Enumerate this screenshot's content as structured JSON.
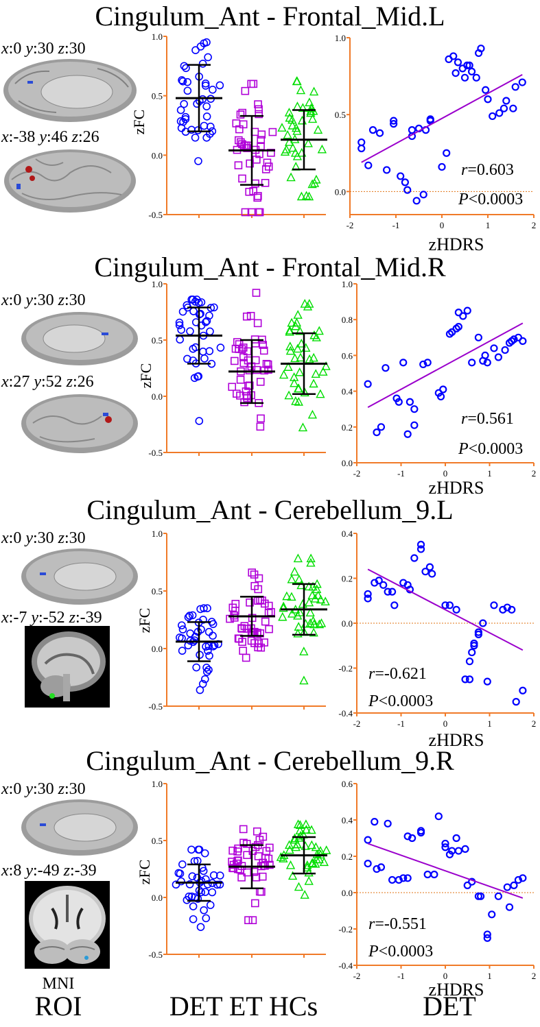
{
  "footer": {
    "roi_top": "MNI",
    "roi_bottom": "ROI",
    "groups": "DET ET HCs",
    "det": "DET"
  },
  "colors": {
    "DET": "#0000ff",
    "ET": "#b000d8",
    "HCs": "#00dd00",
    "axis": "#f07a28",
    "fit": "#9a00cc",
    "ref": "#e07010"
  },
  "chart_data": [
    {
      "title": "Cingulum_Ant - Frontal_Mid.L",
      "roi_coords": [
        {
          "x": "0",
          "y": "30",
          "z": "30"
        },
        {
          "x": "-38",
          "y": "46",
          "z": "26"
        }
      ],
      "scatter_dot": {
        "type": "scatter",
        "ylabel": "zFC",
        "ylim": [
          -0.5,
          1.0
        ],
        "yticks": [
          "1.0",
          "0.5",
          "0.0",
          "-0.5"
        ],
        "groups": [
          {
            "name": "DET",
            "marker": "circle",
            "mean": 0.48,
            "sd": 0.28,
            "min": -0.05,
            "max": 0.95,
            "n": 40
          },
          {
            "name": "ET",
            "marker": "square",
            "mean": 0.04,
            "sd": 0.29,
            "min": -0.48,
            "max": 0.6,
            "n": 44
          },
          {
            "name": "HCs",
            "marker": "triangle",
            "mean": 0.13,
            "sd": 0.25,
            "min": -0.35,
            "max": 0.62,
            "n": 40
          }
        ]
      },
      "correlation": {
        "type": "scatter",
        "xlabel": "zHDRS",
        "xlim": [
          -2,
          2
        ],
        "ylim": [
          -0.15,
          1.0
        ],
        "xticks": [
          "-2",
          "-1",
          "0",
          "1",
          "2"
        ],
        "yticks": [
          "1.0",
          "0.5",
          "0.0"
        ],
        "points": [
          [
            -1.75,
            0.28
          ],
          [
            -1.75,
            0.32
          ],
          [
            -1.6,
            0.17
          ],
          [
            -1.5,
            0.4
          ],
          [
            -1.35,
            0.38
          ],
          [
            -1.2,
            0.14
          ],
          [
            -1.05,
            0.44
          ],
          [
            -1.05,
            0.46
          ],
          [
            -0.9,
            0.1
          ],
          [
            -0.8,
            0.06
          ],
          [
            -0.75,
            0.01
          ],
          [
            -0.65,
            0.4
          ],
          [
            -0.65,
            0.36
          ],
          [
            -0.55,
            -0.06
          ],
          [
            -0.5,
            0.41
          ],
          [
            -0.4,
            -0.02
          ],
          [
            -0.35,
            0.4
          ],
          [
            -0.25,
            0.46
          ],
          [
            -0.25,
            0.47
          ],
          [
            0,
            0.16
          ],
          [
            0.1,
            0.25
          ],
          [
            0.15,
            0.86
          ],
          [
            0.25,
            0.88
          ],
          [
            0.3,
            0.77
          ],
          [
            0.35,
            0.84
          ],
          [
            0.45,
            0.8
          ],
          [
            0.5,
            0.74
          ],
          [
            0.55,
            0.82
          ],
          [
            0.6,
            0.82
          ],
          [
            0.65,
            0.78
          ],
          [
            0.75,
            0.74
          ],
          [
            0.8,
            0.9
          ],
          [
            0.85,
            0.93
          ],
          [
            0.95,
            0.66
          ],
          [
            1.0,
            0.6
          ],
          [
            1.1,
            0.49
          ],
          [
            1.25,
            0.51
          ],
          [
            1.35,
            0.54
          ],
          [
            1.4,
            0.59
          ],
          [
            1.55,
            0.54
          ],
          [
            1.6,
            0.68
          ],
          [
            1.75,
            0.71
          ]
        ],
        "fit": [
          [
            -1.75,
            0.19
          ],
          [
            1.75,
            0.76
          ]
        ],
        "r": "0.603",
        "p": "0.0003"
      }
    },
    {
      "title": "Cingulum_Ant - Frontal_Mid.R",
      "roi_coords": [
        {
          "x": "0",
          "y": "30",
          "z": "30"
        },
        {
          "x": "27",
          "y": "52",
          "z": "26"
        }
      ],
      "scatter_dot": {
        "type": "scatter",
        "ylabel": "zFC",
        "ylim": [
          -0.5,
          1.0
        ],
        "yticks": [
          "1.0",
          "0.5",
          "0.0",
          "-0.5"
        ],
        "groups": [
          {
            "name": "DET",
            "marker": "circle",
            "mean": 0.54,
            "sd": 0.25,
            "min": -0.22,
            "max": 0.86,
            "n": 40
          },
          {
            "name": "ET",
            "marker": "square",
            "mean": 0.22,
            "sd": 0.28,
            "min": -0.27,
            "max": 0.92,
            "n": 44
          },
          {
            "name": "HCs",
            "marker": "triangle",
            "mean": 0.29,
            "sd": 0.27,
            "min": -0.28,
            "max": 0.82,
            "n": 40
          }
        ]
      },
      "correlation": {
        "type": "scatter",
        "xlabel": "zHDRS",
        "xlim": [
          -2,
          2
        ],
        "ylim": [
          0.0,
          1.0
        ],
        "xticks": [
          "-2",
          "-1",
          "0",
          "1",
          "2"
        ],
        "yticks": [
          "1.0",
          "0.8",
          "0.6",
          "0.4",
          "0.2",
          "0.0"
        ],
        "points": [
          [
            -1.75,
            0.44
          ],
          [
            -1.55,
            0.17
          ],
          [
            -1.45,
            0.2
          ],
          [
            -1.35,
            0.53
          ],
          [
            -1.1,
            0.36
          ],
          [
            -1.05,
            0.34
          ],
          [
            -0.95,
            0.56
          ],
          [
            -0.85,
            0.16
          ],
          [
            -0.8,
            0.34
          ],
          [
            -0.7,
            0.21
          ],
          [
            -0.7,
            0.3
          ],
          [
            -0.5,
            0.55
          ],
          [
            -0.4,
            0.56
          ],
          [
            -0.15,
            0.39
          ],
          [
            -0.1,
            0.37
          ],
          [
            -0.05,
            0.41
          ],
          [
            0.1,
            0.72
          ],
          [
            0.15,
            0.73
          ],
          [
            0.25,
            0.75
          ],
          [
            0.3,
            0.84
          ],
          [
            0.3,
            0.76
          ],
          [
            0.4,
            0.82
          ],
          [
            0.5,
            0.85
          ],
          [
            0.6,
            0.56
          ],
          [
            0.75,
            0.7
          ],
          [
            0.85,
            0.57
          ],
          [
            0.9,
            0.6
          ],
          [
            0.95,
            0.56
          ],
          [
            1.1,
            0.64
          ],
          [
            1.2,
            0.59
          ],
          [
            1.35,
            0.63
          ],
          [
            1.45,
            0.67
          ],
          [
            1.5,
            0.68
          ],
          [
            1.55,
            0.69
          ],
          [
            1.65,
            0.7
          ],
          [
            1.75,
            0.68
          ]
        ],
        "fit": [
          [
            -1.75,
            0.31
          ],
          [
            1.75,
            0.78
          ]
        ],
        "r": "0.561",
        "p": "0.0003"
      }
    },
    {
      "title": "Cingulum_Ant - Cerebellum_9.L",
      "roi_coords": [
        {
          "x": "0",
          "y": "30",
          "z": "30"
        },
        {
          "x": "-7",
          "y": "-52",
          "z": "-39"
        }
      ],
      "scatter_dot": {
        "type": "scatter",
        "ylabel": "zFC",
        "ylim": [
          -0.5,
          1.0
        ],
        "yticks": [
          "1.0",
          "0.5",
          "0.0",
          "-0.5"
        ],
        "groups": [
          {
            "name": "DET",
            "marker": "circle",
            "mean": 0.06,
            "sd": 0.17,
            "min": -0.36,
            "max": 0.35,
            "n": 40
          },
          {
            "name": "ET",
            "marker": "square",
            "mean": 0.28,
            "sd": 0.17,
            "min": -0.08,
            "max": 0.66,
            "n": 44
          },
          {
            "name": "HCs",
            "marker": "triangle",
            "mean": 0.34,
            "sd": 0.22,
            "min": -0.28,
            "max": 0.78,
            "n": 40
          }
        ]
      },
      "correlation": {
        "type": "scatter",
        "xlabel": "zHDRS",
        "xlim": [
          -2,
          2
        ],
        "ylim": [
          -0.4,
          0.4
        ],
        "xticks": [
          "-2",
          "-1",
          "0",
          "1",
          "2"
        ],
        "yticks": [
          "0.4",
          "0.2",
          "0.0",
          "-0.2",
          "-0.4"
        ],
        "points": [
          [
            -1.75,
            0.13
          ],
          [
            -1.75,
            0.11
          ],
          [
            -1.6,
            0.18
          ],
          [
            -1.5,
            0.19
          ],
          [
            -1.4,
            0.17
          ],
          [
            -1.3,
            0.14
          ],
          [
            -1.2,
            0.14
          ],
          [
            -1.15,
            0.08
          ],
          [
            -0.95,
            0.18
          ],
          [
            -0.85,
            0.17
          ],
          [
            -0.8,
            0.15
          ],
          [
            -0.7,
            0.29
          ],
          [
            -0.55,
            0.33
          ],
          [
            -0.55,
            0.35
          ],
          [
            -0.45,
            0.23
          ],
          [
            -0.35,
            0.25
          ],
          [
            -0.3,
            0.22
          ],
          [
            0,
            0.08
          ],
          [
            0.1,
            0.08
          ],
          [
            0.25,
            0.06
          ],
          [
            0.45,
            -0.25
          ],
          [
            0.55,
            -0.17
          ],
          [
            0.55,
            -0.25
          ],
          [
            0.6,
            -0.13
          ],
          [
            0.65,
            -0.09
          ],
          [
            0.65,
            -0.1
          ],
          [
            0.75,
            -0.04
          ],
          [
            0.75,
            -0.05
          ],
          [
            0.85,
            0.0
          ],
          [
            0.95,
            -0.26
          ],
          [
            1.1,
            0.08
          ],
          [
            1.3,
            0.06
          ],
          [
            1.4,
            0.07
          ],
          [
            1.5,
            0.06
          ],
          [
            1.6,
            -0.35
          ],
          [
            1.75,
            -0.3
          ]
        ],
        "fit": [
          [
            -1.75,
            0.24
          ],
          [
            1.75,
            -0.12
          ]
        ],
        "r": "-0.621",
        "p": "0.0003"
      }
    },
    {
      "title": "Cingulum_Ant - Cerebellum_9.R",
      "roi_coords": [
        {
          "x": "0",
          "y": "30",
          "z": "30"
        },
        {
          "x": "8",
          "y": "-49",
          "z": "-39"
        }
      ],
      "scatter_dot": {
        "type": "scatter",
        "ylabel": "zFC",
        "ylim": [
          -0.5,
          1.0
        ],
        "yticks": [
          "1.0",
          "0.5",
          "0.0",
          "-0.5"
        ],
        "groups": [
          {
            "name": "DET",
            "marker": "circle",
            "mean": 0.13,
            "sd": 0.16,
            "min": -0.26,
            "max": 0.42,
            "n": 40
          },
          {
            "name": "ET",
            "marker": "square",
            "mean": 0.27,
            "sd": 0.19,
            "min": -0.2,
            "max": 0.6,
            "n": 44
          },
          {
            "name": "HCs",
            "marker": "triangle",
            "mean": 0.37,
            "sd": 0.16,
            "min": 0.02,
            "max": 0.64,
            "n": 40
          }
        ]
      },
      "correlation": {
        "type": "scatter",
        "xlabel": "zHDRS",
        "xlim": [
          -2,
          2
        ],
        "ylim": [
          -0.4,
          0.6
        ],
        "xticks": [
          "-2",
          "-1",
          "0",
          "1",
          "2"
        ],
        "yticks": [
          "0.6",
          "0.4",
          "0.2",
          "0.0",
          "-0.2",
          "-0.4"
        ],
        "points": [
          [
            -1.75,
            0.29
          ],
          [
            -1.75,
            0.16
          ],
          [
            -1.6,
            0.39
          ],
          [
            -1.55,
            0.13
          ],
          [
            -1.45,
            0.14
          ],
          [
            -1.3,
            0.38
          ],
          [
            -1.2,
            0.07
          ],
          [
            -1.05,
            0.07
          ],
          [
            -0.95,
            0.08
          ],
          [
            -0.85,
            0.08
          ],
          [
            -0.85,
            0.31
          ],
          [
            -0.75,
            0.3
          ],
          [
            -0.55,
            0.33
          ],
          [
            -0.55,
            0.34
          ],
          [
            -0.4,
            0.1
          ],
          [
            -0.25,
            0.1
          ],
          [
            -0.15,
            0.42
          ],
          [
            0,
            0.27
          ],
          [
            0,
            0.25
          ],
          [
            0.1,
            0.21
          ],
          [
            0.15,
            0.23
          ],
          [
            0.25,
            0.3
          ],
          [
            0.3,
            0.23
          ],
          [
            0.45,
            0.24
          ],
          [
            0.5,
            0.04
          ],
          [
            0.6,
            0.06
          ],
          [
            0.75,
            -0.02
          ],
          [
            0.8,
            -0.02
          ],
          [
            0.95,
            -0.23
          ],
          [
            0.95,
            -0.25
          ],
          [
            1.05,
            -0.12
          ],
          [
            1.2,
            -0.02
          ],
          [
            1.4,
            0.03
          ],
          [
            1.45,
            -0.08
          ],
          [
            1.55,
            0.04
          ],
          [
            1.65,
            0.07
          ],
          [
            1.75,
            0.08
          ]
        ],
        "fit": [
          [
            -1.75,
            0.27
          ],
          [
            1.75,
            -0.03
          ]
        ],
        "r": "-0.551",
        "p": "0.0003"
      }
    }
  ]
}
